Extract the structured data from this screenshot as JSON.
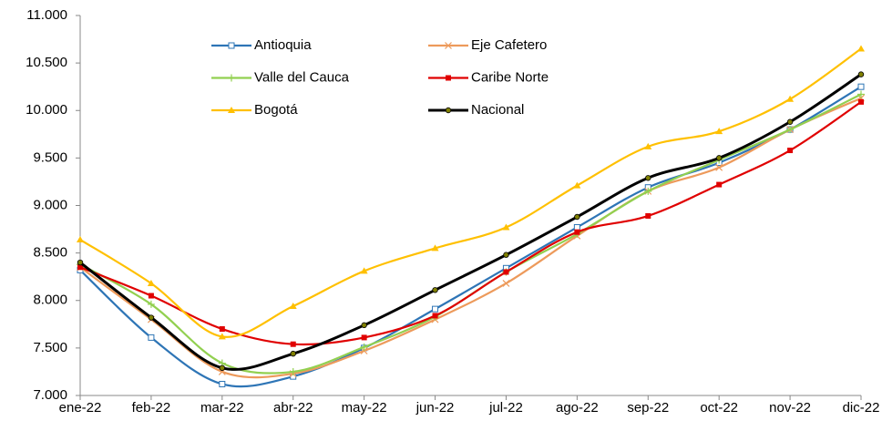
{
  "chart_data": {
    "type": "line",
    "categories": [
      "ene-22",
      "feb-22",
      "mar-22",
      "abr-22",
      "may-22",
      "jun-22",
      "jul-22",
      "ago-22",
      "sep-22",
      "oct-22",
      "nov-22",
      "dic-22"
    ],
    "series": [
      {
        "name": "Antioquia",
        "color": "#2e75b6",
        "marker": "square-open",
        "values": [
          8320,
          7610,
          7120,
          7200,
          7500,
          7910,
          8340,
          8770,
          9190,
          9450,
          9800,
          10250
        ]
      },
      {
        "name": "Eje Cafetero",
        "color": "#ed9a5b",
        "marker": "x",
        "values": [
          8350,
          7800,
          7250,
          7230,
          7470,
          7800,
          8180,
          8680,
          9150,
          9400,
          9800,
          10130
        ]
      },
      {
        "name": "Valle del Cauca",
        "color": "#92d050",
        "marker": "plus",
        "values": [
          8380,
          7960,
          7340,
          7250,
          7510,
          7830,
          8300,
          8700,
          9150,
          9480,
          9800,
          10170
        ]
      },
      {
        "name": "Caribe Norte",
        "color": "#e00000",
        "marker": "square",
        "values": [
          8350,
          8050,
          7700,
          7540,
          7610,
          7840,
          8300,
          8720,
          8890,
          9220,
          9580,
          10090
        ]
      },
      {
        "name": "Bogotá",
        "color": "#ffc000",
        "marker": "triangle",
        "values": [
          8640,
          8180,
          7620,
          7940,
          8310,
          8550,
          8770,
          9210,
          9620,
          9780,
          10120,
          10650
        ]
      },
      {
        "name": "Nacional",
        "color": "#000000",
        "marker": "circle",
        "values": [
          8400,
          7820,
          7290,
          7440,
          7740,
          8110,
          8480,
          8880,
          9290,
          9500,
          9880,
          10380
        ]
      }
    ],
    "ylim": [
      7000,
      11000
    ],
    "yticks": [
      {
        "value": 7000,
        "label": "7.000"
      },
      {
        "value": 7500,
        "label": "7.500"
      },
      {
        "value": 8000,
        "label": "8.000"
      },
      {
        "value": 8500,
        "label": "8.500"
      },
      {
        "value": 9000,
        "label": "9.000"
      },
      {
        "value": 9500,
        "label": "9.500"
      },
      {
        "value": 10000,
        "label": "10.000"
      },
      {
        "value": 10500,
        "label": "10.500"
      },
      {
        "value": 11000,
        "label": "11.000"
      }
    ],
    "legend": "top"
  }
}
